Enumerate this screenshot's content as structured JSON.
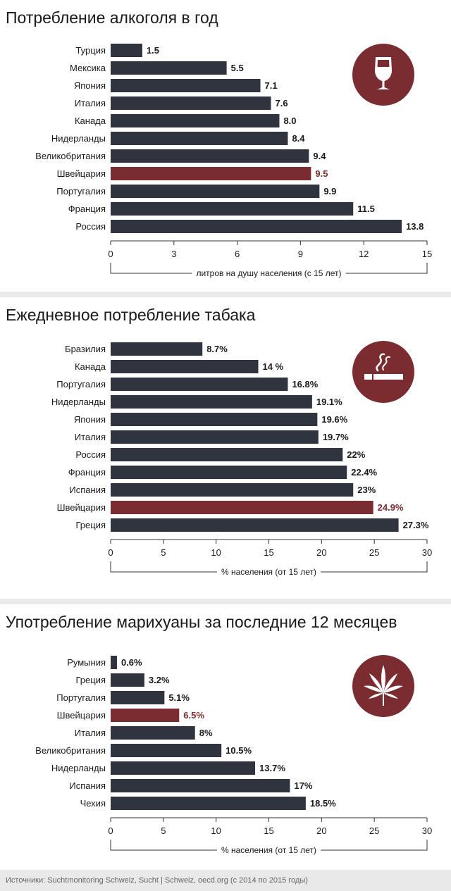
{
  "colors": {
    "bar": "#2f343e",
    "highlight": "#7b2c30",
    "icon_circle": "#7b2c30",
    "text": "#1a1a1a",
    "background": "#e9e9e9",
    "panel": "#ffffff"
  },
  "source": "Источники: Suchtmonitoring Schweiz, Sucht | Schweiz,  oecd.org (с 2014 по 2015 годы)",
  "chart_data": [
    {
      "type": "bar",
      "orientation": "horizontal",
      "title": "Потребление алкоголя в год",
      "icon": "wine-glass-icon",
      "categories": [
        "Турция",
        "Мексика",
        "Япония",
        "Италия",
        "Канада",
        "Нидерланды",
        "Великобритания",
        "Швейцария",
        "Португалия",
        "Франция",
        "Россия"
      ],
      "values": [
        1.5,
        5.5,
        7.1,
        7.6,
        8.0,
        8.4,
        9.4,
        9.5,
        9.9,
        11.5,
        13.8
      ],
      "value_labels": [
        "1.5",
        "5.5",
        "7.1",
        "7.6",
        "8.0",
        "8.4",
        "9.4",
        "9.5",
        "9.9",
        "11.5",
        "13.8"
      ],
      "highlight": "Швейцария",
      "xlim": [
        0,
        15
      ],
      "ticks": [
        0,
        3,
        6,
        9,
        12,
        15
      ],
      "xlabel": "литров на душу населения (с 15 лет)",
      "grid": false
    },
    {
      "type": "bar",
      "orientation": "horizontal",
      "title": "Ежедневное потребление табака",
      "icon": "cigarette-icon",
      "categories": [
        "Бразилия",
        "Канада",
        "Португалия",
        "Нидерланды",
        "Япония",
        "Италия",
        "Россия",
        "Франция",
        "Испания",
        "Швейцария",
        "Греция"
      ],
      "values": [
        8.7,
        14,
        16.8,
        19.1,
        19.6,
        19.7,
        22,
        22.4,
        23,
        24.9,
        27.3
      ],
      "value_labels": [
        "8.7%",
        "14 %",
        "16.8%",
        "19.1%",
        "19.6%",
        "19.7%",
        "22%",
        "22.4%",
        "23%",
        "24.9%",
        "27.3%"
      ],
      "highlight": "Швейцария",
      "xlim": [
        0,
        30
      ],
      "ticks": [
        0,
        5,
        10,
        15,
        20,
        25,
        30
      ],
      "xlabel": "% населения (от 15 лет)",
      "grid": false
    },
    {
      "type": "bar",
      "orientation": "horizontal",
      "title": "Употребление марихуаны за последние 12 месяцев",
      "icon": "cannabis-leaf-icon",
      "categories": [
        "Румыния",
        "Греция",
        "Португалия",
        "Швейцария",
        "Италия",
        "Великобритания",
        "Нидерланды",
        "Испания",
        "Чехия"
      ],
      "values": [
        0.6,
        3.2,
        5.1,
        6.5,
        8,
        10.5,
        13.7,
        17,
        18.5
      ],
      "value_labels": [
        "0.6%",
        "3.2%",
        "5.1%",
        "6.5%",
        "8%",
        "10.5%",
        "13.7%",
        "17%",
        "18.5%"
      ],
      "highlight": "Швейцария",
      "xlim": [
        0,
        30
      ],
      "ticks": [
        0,
        5,
        10,
        15,
        20,
        25,
        30
      ],
      "xlabel": "% населения (от 15 лет)",
      "grid": false
    }
  ]
}
